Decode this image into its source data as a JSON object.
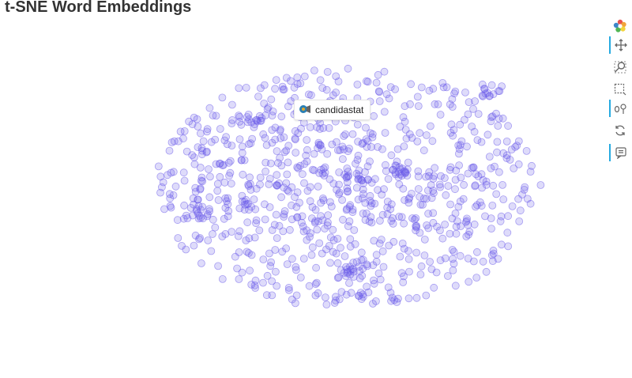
{
  "chart_data": {
    "type": "scatter",
    "title": "t-SNE Word Embeddings",
    "xlabel": "",
    "ylabel": "",
    "grid": false,
    "legend": "none",
    "point_color": "#6b5bea",
    "point_count": 850,
    "x_range": [
      -1,
      1
    ],
    "y_range": [
      -1,
      1
    ],
    "hovered_label": "candidastat",
    "hovered_point": {
      "x": -0.1,
      "y": 0.65
    }
  },
  "toolbar": {
    "tools": [
      {
        "name": "bokeh-logo-icon"
      },
      {
        "name": "pan-tool-icon"
      },
      {
        "name": "wheel-zoom-icon"
      },
      {
        "name": "box-zoom-icon"
      },
      {
        "name": "hover-tool-icon"
      },
      {
        "name": "reset-tool-icon"
      },
      {
        "name": "save-tool-icon"
      }
    ],
    "accent_color": "#26aae1"
  }
}
